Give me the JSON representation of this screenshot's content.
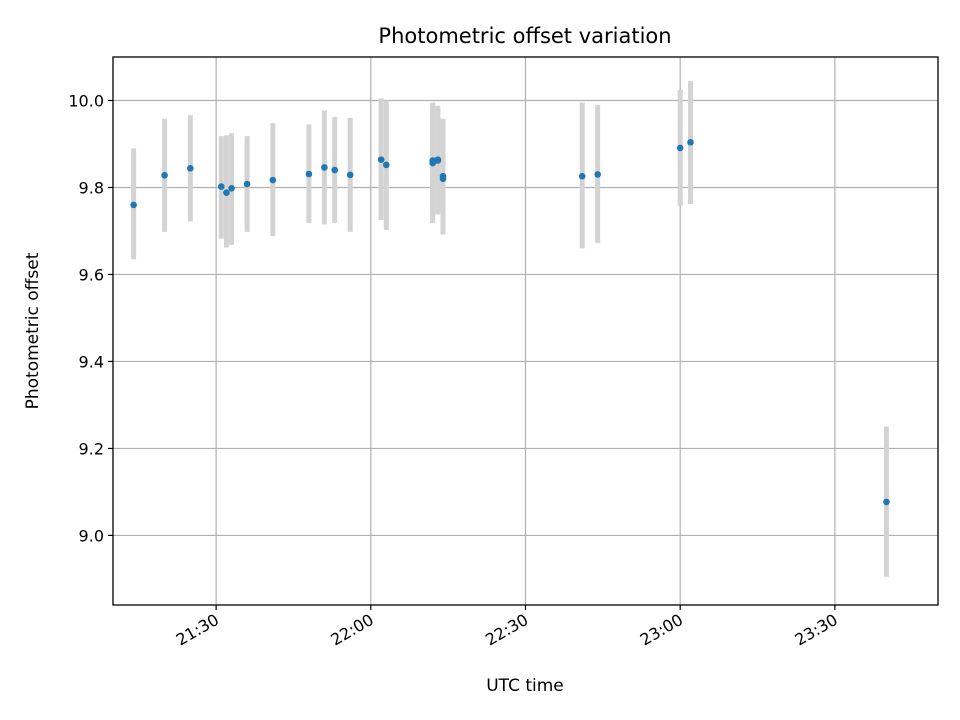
{
  "chart_data": {
    "type": "scatter",
    "title": "Photometric offset variation",
    "xlabel": "UTC time",
    "ylabel": "Photometric offset",
    "xlim": [
      "21:10",
      "23:50"
    ],
    "ylim": [
      8.84,
      10.1
    ],
    "grid": true,
    "x_ticks": [
      "21:30",
      "22:00",
      "22:30",
      "23:00",
      "23:30"
    ],
    "y_ticks": [
      "9.0",
      "9.2",
      "9.4",
      "9.6",
      "9.8",
      "10.0"
    ],
    "colors": {
      "point": "#1f77b4",
      "errorbar": "#d3d3d3",
      "grid": "#b0b0b0"
    },
    "points": [
      {
        "t": "21:14",
        "y": 9.76,
        "ylo": 9.635,
        "yhi": 9.89
      },
      {
        "t": "21:20",
        "y": 9.828,
        "ylo": 9.698,
        "yhi": 9.958
      },
      {
        "t": "21:25",
        "y": 9.844,
        "ylo": 9.722,
        "yhi": 9.966
      },
      {
        "t": "21:31",
        "y": 9.802,
        "ylo": 9.682,
        "yhi": 9.918
      },
      {
        "t": "21:32",
        "y": 9.788,
        "ylo": 9.662,
        "yhi": 9.92
      },
      {
        "t": "21:33",
        "y": 9.798,
        "ylo": 9.668,
        "yhi": 9.925
      },
      {
        "t": "21:36",
        "y": 9.808,
        "ylo": 9.698,
        "yhi": 9.918
      },
      {
        "t": "21:41",
        "y": 9.817,
        "ylo": 9.688,
        "yhi": 9.948
      },
      {
        "t": "21:48",
        "y": 9.831,
        "ylo": 9.718,
        "yhi": 9.945
      },
      {
        "t": "21:51",
        "y": 9.846,
        "ylo": 9.715,
        "yhi": 9.977
      },
      {
        "t": "21:53",
        "y": 9.84,
        "ylo": 9.718,
        "yhi": 9.962
      },
      {
        "t": "21:56",
        "y": 9.829,
        "ylo": 9.698,
        "yhi": 9.96
      },
      {
        "t": "22:02",
        "y": 9.864,
        "ylo": 9.725,
        "yhi": 10.005
      },
      {
        "t": "22:03",
        "y": 9.852,
        "ylo": 9.702,
        "yhi": 10.0
      },
      {
        "t": "22:12",
        "y": 9.856,
        "ylo": 9.718,
        "yhi": 9.995
      },
      {
        "t": "22:12",
        "y": 9.862,
        "ylo": 9.742,
        "yhi": 9.982
      },
      {
        "t": "22:13",
        "y": 9.864,
        "ylo": 9.738,
        "yhi": 9.988
      },
      {
        "t": "22:13",
        "y": 9.862,
        "ylo": 9.748,
        "yhi": 9.978
      },
      {
        "t": "22:14",
        "y": 9.826,
        "ylo": 9.692,
        "yhi": 9.958
      },
      {
        "t": "22:14",
        "y": 9.82,
        "ylo": 9.692,
        "yhi": 9.948
      },
      {
        "t": "22:41",
        "y": 9.826,
        "ylo": 9.66,
        "yhi": 9.995
      },
      {
        "t": "22:44",
        "y": 9.83,
        "ylo": 9.672,
        "yhi": 9.99
      },
      {
        "t": "23:00",
        "y": 9.891,
        "ylo": 9.758,
        "yhi": 10.024
      },
      {
        "t": "23:02",
        "y": 9.904,
        "ylo": 9.762,
        "yhi": 10.045
      },
      {
        "t": "23:40",
        "y": 9.077,
        "ylo": 8.905,
        "yhi": 9.25
      }
    ]
  }
}
